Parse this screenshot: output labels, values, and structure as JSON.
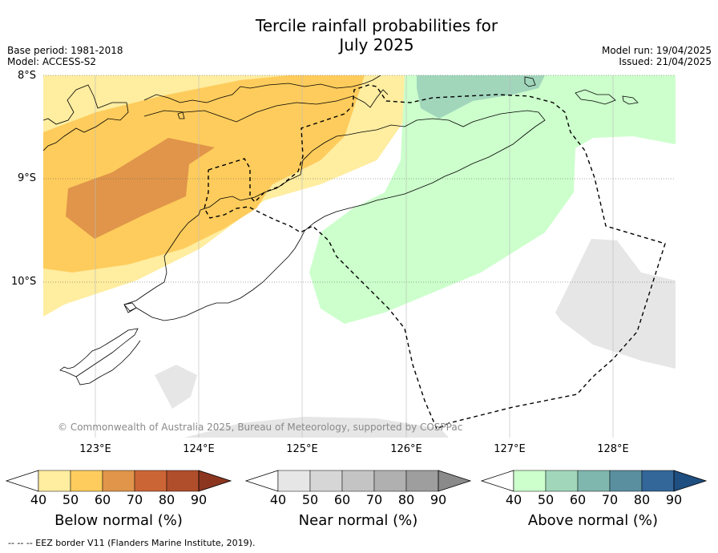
{
  "header": {
    "title_line1": "Tercile rainfall probabilities for",
    "title_line2": "July 2025",
    "base_period": "Base period: 1981-2018",
    "model": "Model: ACCESS-S2",
    "model_run": "Model run: 19/04/2025",
    "issued": "Issued: 21/04/2025"
  },
  "map": {
    "lat_labels": [
      "8°S",
      "9°S",
      "10°S"
    ],
    "lon_labels": [
      "123°E",
      "124°E",
      "125°E",
      "126°E",
      "127°E",
      "128°E"
    ],
    "copyright": "© Commonwealth of Australia 2025, Bureau of Meteorology, supported by COSPPac"
  },
  "colorbars": [
    {
      "title": "Below normal (%)",
      "ticks": [
        "40",
        "50",
        "60",
        "70",
        "80",
        "90"
      ],
      "colors": [
        "#ffeda0",
        "#fecc5c",
        "#e0954a",
        "#cc6535",
        "#b04e2b",
        "#8c3620"
      ]
    },
    {
      "title": "Near normal (%)",
      "ticks": [
        "40",
        "50",
        "60",
        "70",
        "80",
        "90"
      ],
      "colors": [
        "#e6e6e6",
        "#d6d6d6",
        "#c4c4c4",
        "#b0b0b0",
        "#9e9e9e",
        "#8a8a8a"
      ]
    },
    {
      "title": "Above normal (%)",
      "ticks": [
        "40",
        "50",
        "60",
        "70",
        "80",
        "90"
      ],
      "colors": [
        "#ccffcc",
        "#a1d6bb",
        "#7fb6ae",
        "#5a8fa0",
        "#336699",
        "#1f4e80"
      ]
    }
  ],
  "footnote": "--  --  -- EEZ border V11 (Flanders Marine Institute, 2019)."
}
